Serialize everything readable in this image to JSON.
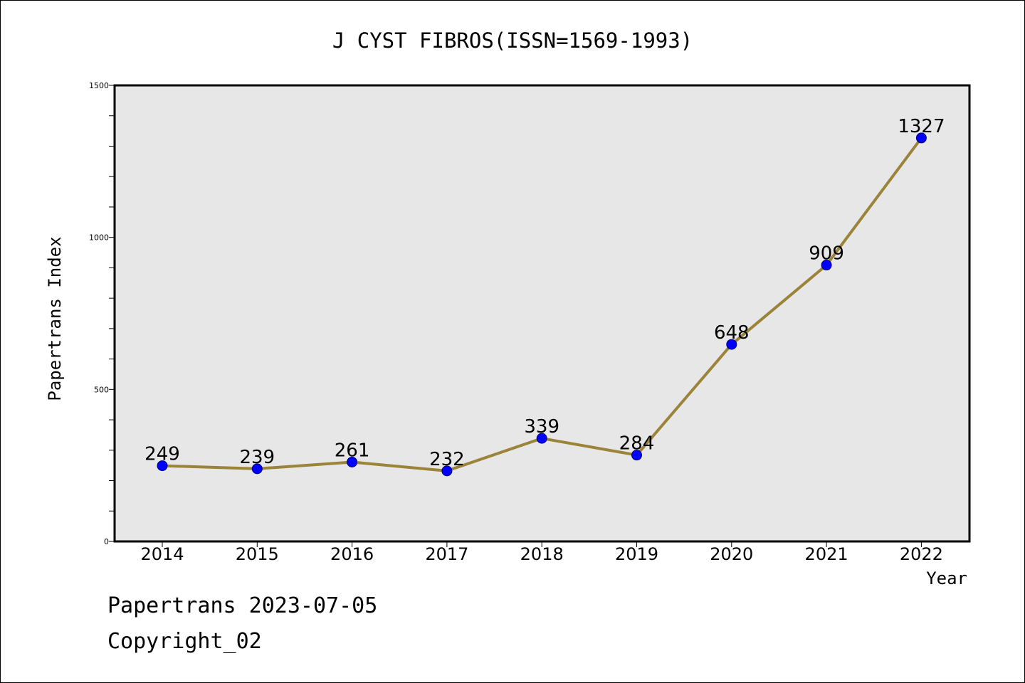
{
  "chart_data": {
    "type": "line",
    "title": "J CYST FIBROS(ISSN=1569-1993)",
    "xlabel": "Year",
    "ylabel": "Papertrans Index",
    "categories": [
      "2014",
      "2015",
      "2016",
      "2017",
      "2018",
      "2019",
      "2020",
      "2021",
      "2022"
    ],
    "values": [
      249,
      239,
      261,
      232,
      339,
      284,
      648,
      909,
      1327
    ],
    "data_labels": [
      "249",
      "239",
      "261",
      "232",
      "339",
      "284",
      "648",
      "909",
      "1327"
    ],
    "ylim": [
      0,
      1500
    ],
    "yticks": [
      0,
      500,
      1000,
      1500
    ],
    "grid": false,
    "colors": {
      "line": "#9b8439",
      "marker": "#0000ff",
      "plot_bg": "#e7e7e7"
    }
  },
  "footer": {
    "line1": "Papertrans 2023-07-05",
    "line2": "Copyright_02"
  }
}
